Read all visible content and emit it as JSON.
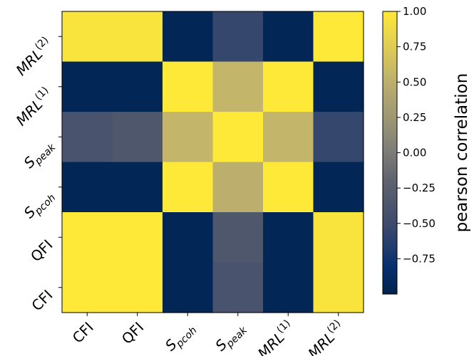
{
  "chart_data": {
    "type": "heatmap",
    "x_categories": [
      {
        "base": "CFI",
        "sub": "",
        "sup": ""
      },
      {
        "base": "QFI",
        "sub": "",
        "sup": ""
      },
      {
        "base": "S",
        "sub": "pcoh",
        "sup": ""
      },
      {
        "base": "S",
        "sub": "peak",
        "sup": ""
      },
      {
        "base": "MRL",
        "sub": "",
        "sup": "(1)"
      },
      {
        "base": "MRL",
        "sub": "",
        "sup": "(2)"
      }
    ],
    "y_categories_top_to_bottom": [
      {
        "base": "MRL",
        "sub": "",
        "sup": "(2)"
      },
      {
        "base": "MRL",
        "sub": "",
        "sup": "(1)"
      },
      {
        "base": "S",
        "sub": "peak",
        "sup": ""
      },
      {
        "base": "S",
        "sub": "pcoh",
        "sup": ""
      },
      {
        "base": "QFI",
        "sub": "",
        "sup": ""
      },
      {
        "base": "CFI",
        "sub": "",
        "sup": ""
      }
    ],
    "rows_top_to_bottom": [
      [
        0.96,
        0.96,
        -0.95,
        -0.55,
        -0.95,
        1.0
      ],
      [
        -0.95,
        -0.95,
        1.0,
        0.55,
        1.0,
        -0.95
      ],
      [
        -0.4,
        -0.35,
        0.55,
        1.0,
        0.55,
        -0.55
      ],
      [
        -0.95,
        -0.95,
        1.0,
        0.5,
        1.0,
        -0.95
      ],
      [
        1.0,
        1.0,
        -0.95,
        -0.35,
        -0.95,
        0.96
      ],
      [
        1.0,
        1.0,
        -0.95,
        -0.4,
        -0.95,
        0.96
      ]
    ],
    "colorbar": {
      "label": "pearson correlation",
      "ticks": [
        "1.00",
        "0.75",
        "0.50",
        "0.25",
        "0.00",
        "−0.25",
        "−0.50",
        "−0.75"
      ],
      "range": [
        -1.0,
        1.0
      ],
      "colormap": "cividis",
      "colors": [
        "#00224e",
        "#575c6d",
        "#7c7b78",
        "#fee838"
      ]
    }
  }
}
